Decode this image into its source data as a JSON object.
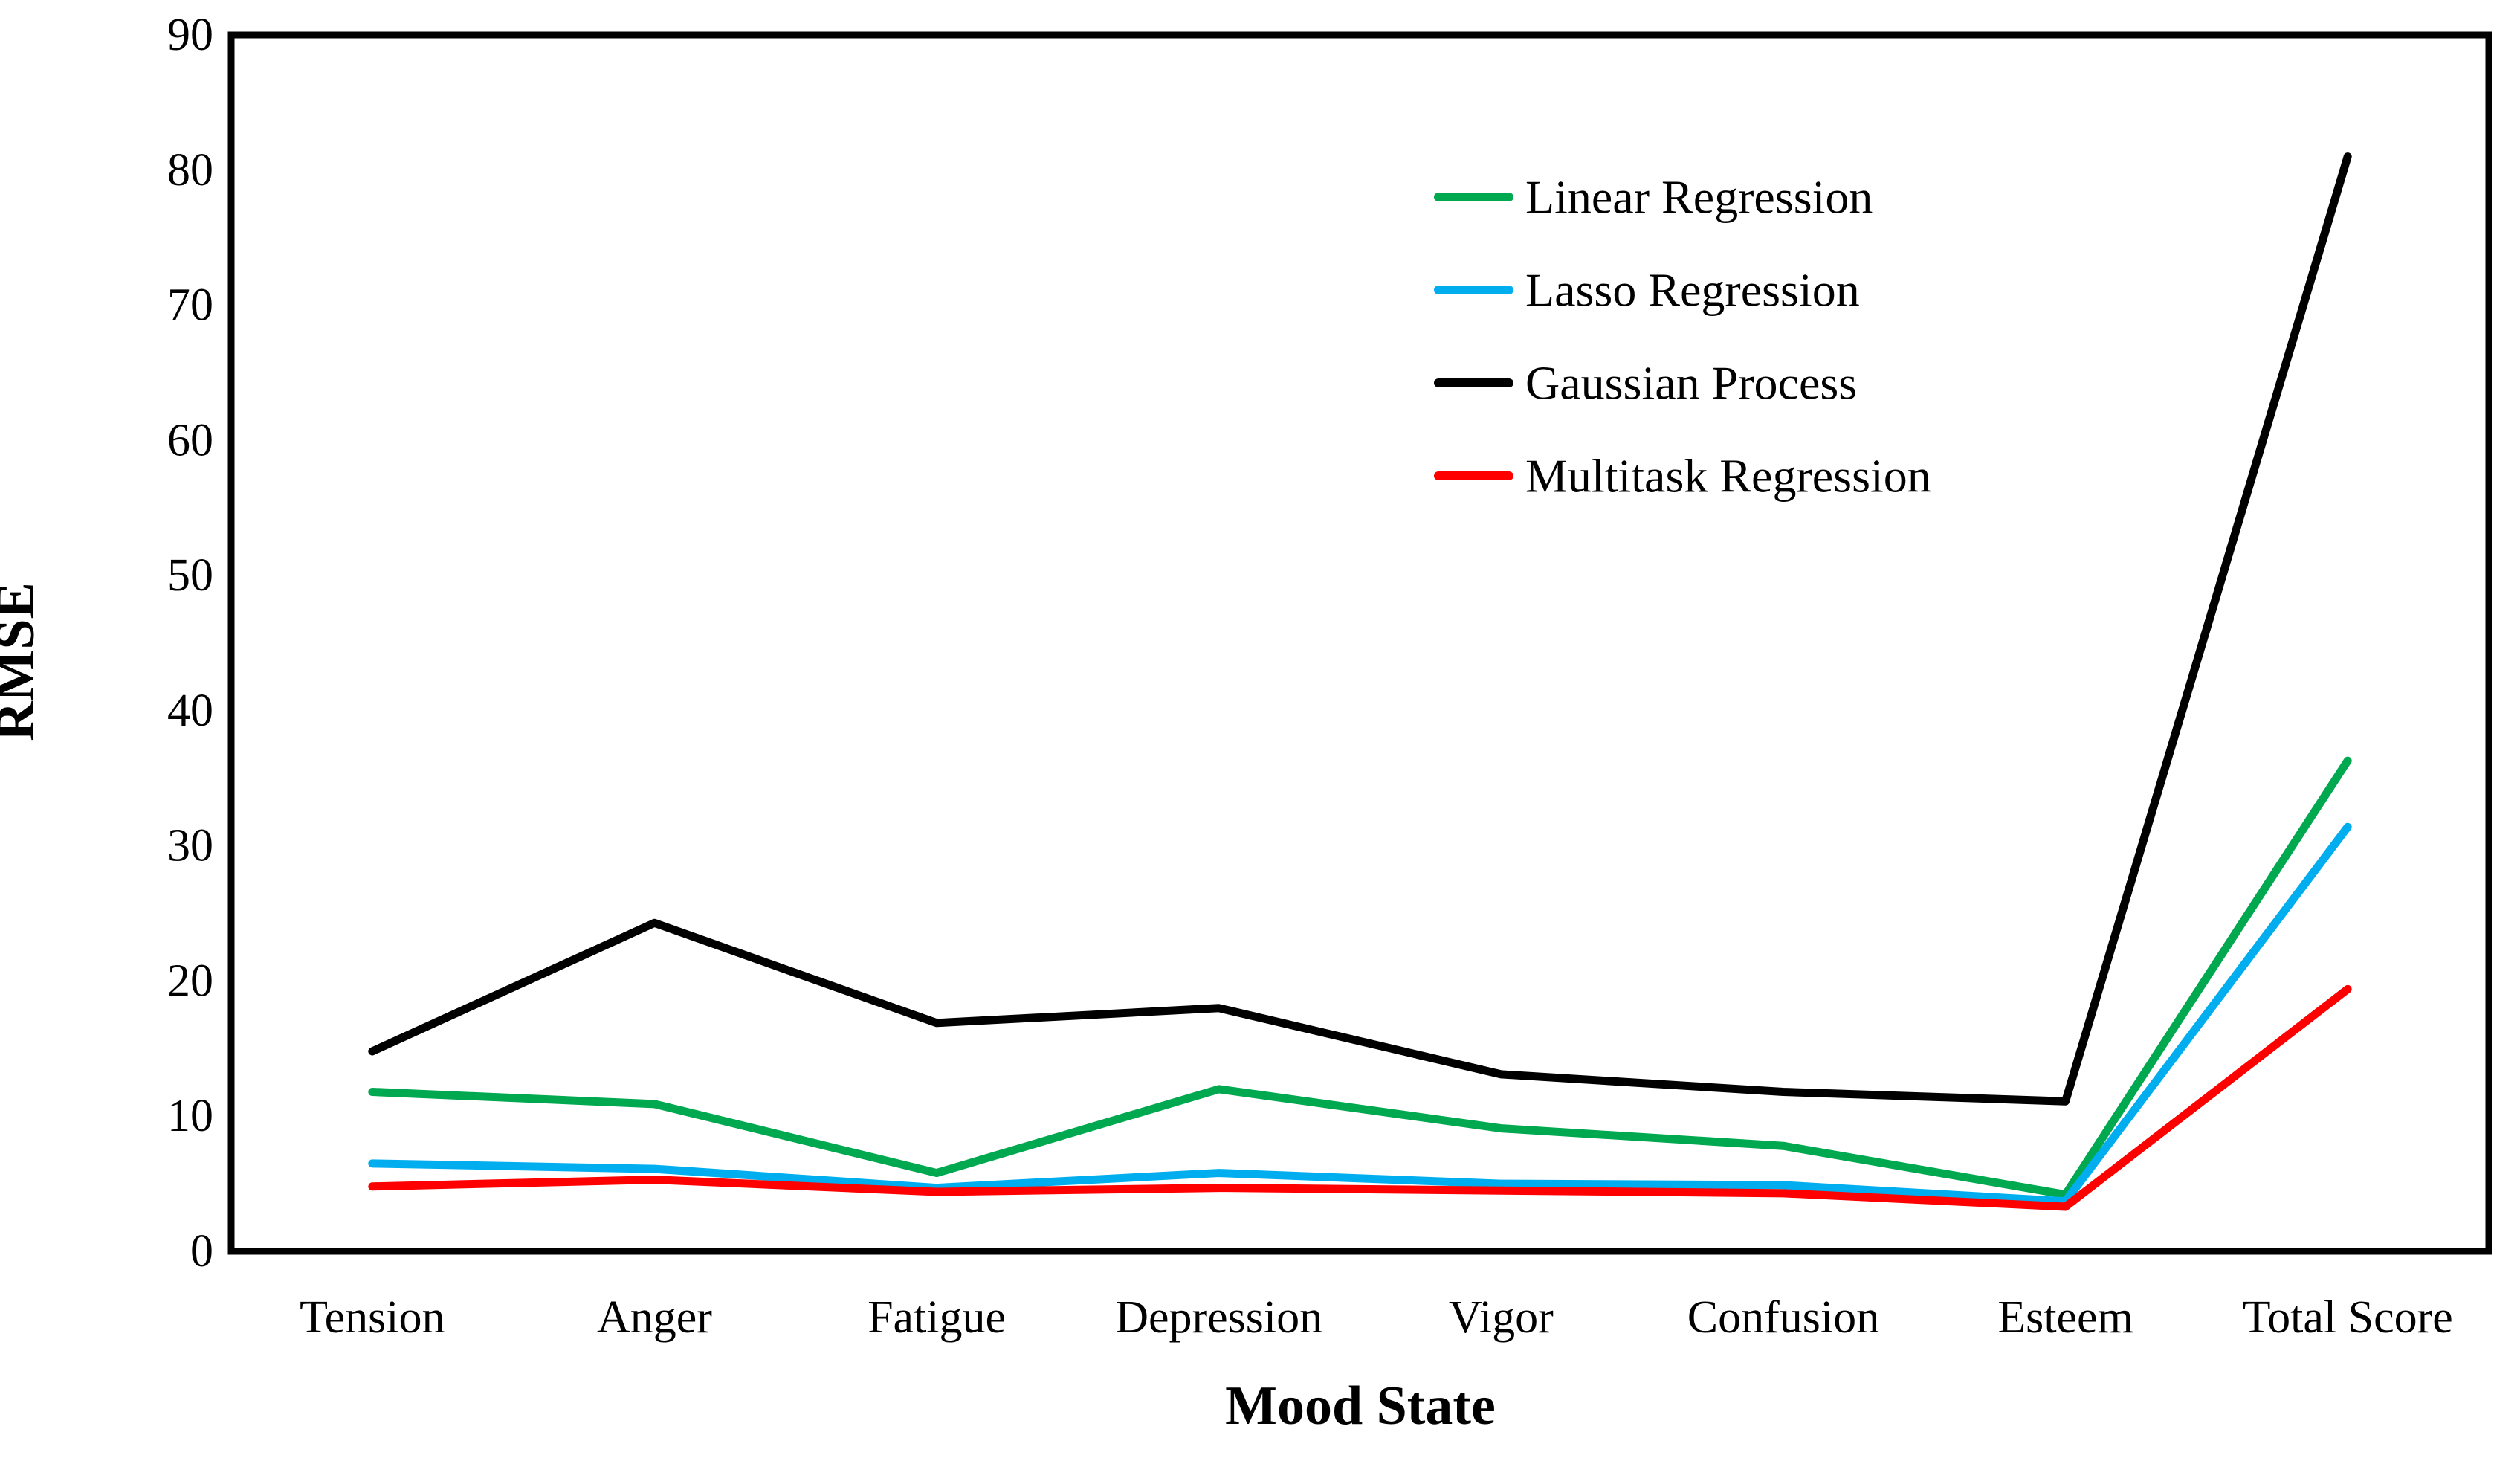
{
  "figure": {
    "background": "#FFFFFF",
    "frame_color": "#000000",
    "text_color": "#000000"
  },
  "chart_data": {
    "type": "line",
    "title": "",
    "xlabel": "Mood State",
    "ylabel": "RMSE",
    "categories": [
      "Tension",
      "Anger",
      "Fatigue",
      "Depression",
      "Vigor",
      "Confusion",
      "Esteem",
      "Total Score"
    ],
    "ylim": [
      0,
      90
    ],
    "yticks": [
      0,
      10,
      20,
      30,
      40,
      50,
      60,
      70,
      80,
      90
    ],
    "grid": false,
    "legend_position": "inside-upper-middle-right",
    "series": [
      {
        "name": "Linear Regression",
        "color": "#00A850",
        "values": [
          11.8,
          10.9,
          5.8,
          12.0,
          9.1,
          7.8,
          4.2,
          36.3
        ]
      },
      {
        "name": "Lasso Regression",
        "color": "#00AEEF",
        "values": [
          6.5,
          6.1,
          4.7,
          5.8,
          5.0,
          4.9,
          3.7,
          31.4
        ]
      },
      {
        "name": "Gaussian Process",
        "color": "#000000",
        "values": [
          14.8,
          24.3,
          16.9,
          18.0,
          13.1,
          11.8,
          11.1,
          81.0
        ]
      },
      {
        "name": "Multitask Regression",
        "color": "#FF0000",
        "values": [
          4.8,
          5.3,
          4.4,
          4.7,
          4.5,
          4.3,
          3.3,
          19.4
        ]
      }
    ]
  }
}
